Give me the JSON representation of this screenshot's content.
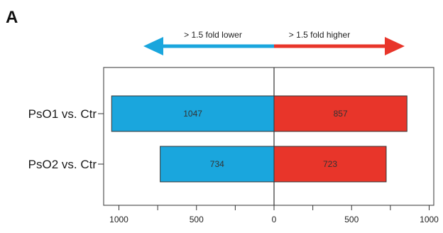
{
  "panel_label": "A",
  "colors": {
    "lower": "#1aa6dd",
    "higher": "#e8352a",
    "frame": "#555555",
    "background": "#ffffff"
  },
  "chart_data": {
    "type": "bar",
    "orientation": "horizontal-diverging",
    "categories": [
      "PsO1 vs. Ctr",
      "PsO2 vs. Ctr"
    ],
    "series": [
      {
        "name": "> 1.5 fold lower",
        "values": [
          1047,
          734
        ],
        "direction": "left"
      },
      {
        "name": "> 1.5 fold higher",
        "values": [
          857,
          723
        ],
        "direction": "right"
      }
    ],
    "xlim": [
      -1000,
      1000
    ],
    "x_ticks": [
      -1000,
      -500,
      0,
      500,
      1000
    ],
    "x_tick_labels": [
      "1000",
      "500",
      "0",
      "500",
      "1000"
    ],
    "x_minor_ticks": [
      -750,
      -250,
      250,
      750
    ],
    "title": "",
    "xlabel": "",
    "ylabel": "",
    "grid": false,
    "legend": "top arrows"
  },
  "arrows": {
    "left_label": "> 1.5 fold lower",
    "right_label": "> 1.5 fold higher"
  }
}
